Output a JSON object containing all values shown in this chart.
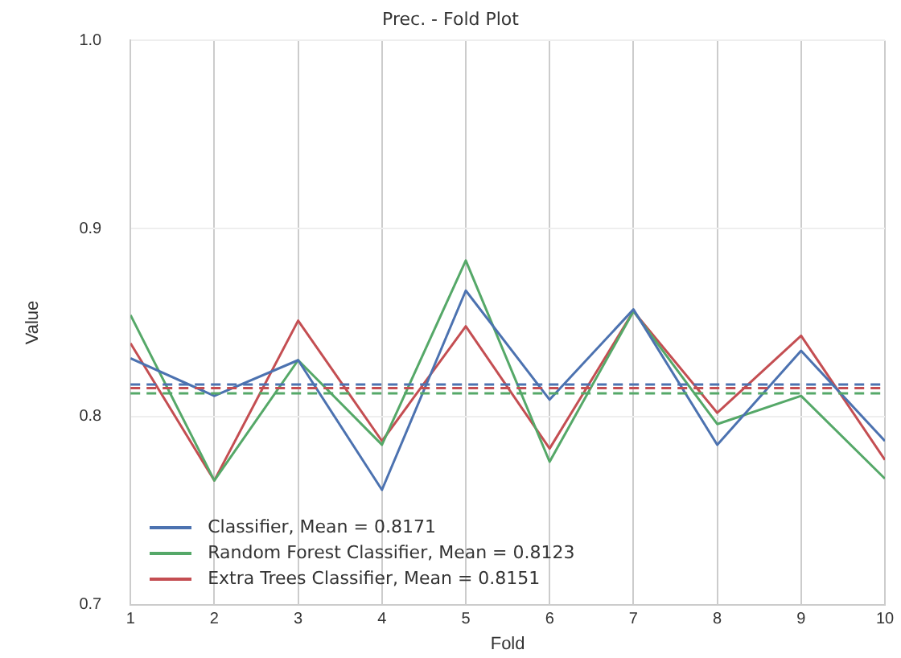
{
  "chart_data": {
    "type": "line",
    "title": "Prec. - Fold Plot",
    "xlabel": "Fold",
    "ylabel": "Value",
    "x": [
      1,
      2,
      3,
      4,
      5,
      6,
      7,
      8,
      9,
      10
    ],
    "xlim": [
      1,
      10
    ],
    "xticks": [
      1,
      2,
      3,
      4,
      5,
      6,
      7,
      8,
      9,
      10
    ],
    "ylim": [
      0.7,
      1.0
    ],
    "yticks": [
      0.7,
      0.8,
      0.9,
      {
        "value": 1.0,
        "label": "1.0"
      }
    ],
    "grid": true,
    "legend": "bottom left",
    "marker": "none",
    "line_style": "solid",
    "series": [
      {
        "name": "Classifier, Mean = 0.8171",
        "color": "#4c72b0",
        "values": [
          0.831,
          0.811,
          0.83,
          0.761,
          0.867,
          0.809,
          0.857,
          0.785,
          0.835,
          0.787
        ]
      },
      {
        "name": "Random Forest Classifier, Mean = 0.8123",
        "color": "#55a868",
        "values": [
          0.854,
          0.766,
          0.83,
          0.785,
          0.883,
          0.776,
          0.856,
          0.796,
          0.811,
          0.767
        ]
      },
      {
        "name": "Extra Trees Classifier, Mean = 0.8151",
        "color": "#c44e52",
        "values": [
          0.839,
          0.766,
          0.851,
          0.787,
          0.848,
          0.783,
          0.856,
          0.802,
          0.843,
          0.777
        ]
      }
    ],
    "ref_lines": [
      {
        "axis": "y",
        "value": 0.8171,
        "color": "#4c72b0",
        "line_style": "dashed"
      },
      {
        "axis": "y",
        "value": 0.8123,
        "color": "#55a868",
        "line_style": "dashed"
      },
      {
        "axis": "y",
        "value": 0.8151,
        "color": "#c44e52",
        "line_style": "dashed"
      }
    ]
  }
}
